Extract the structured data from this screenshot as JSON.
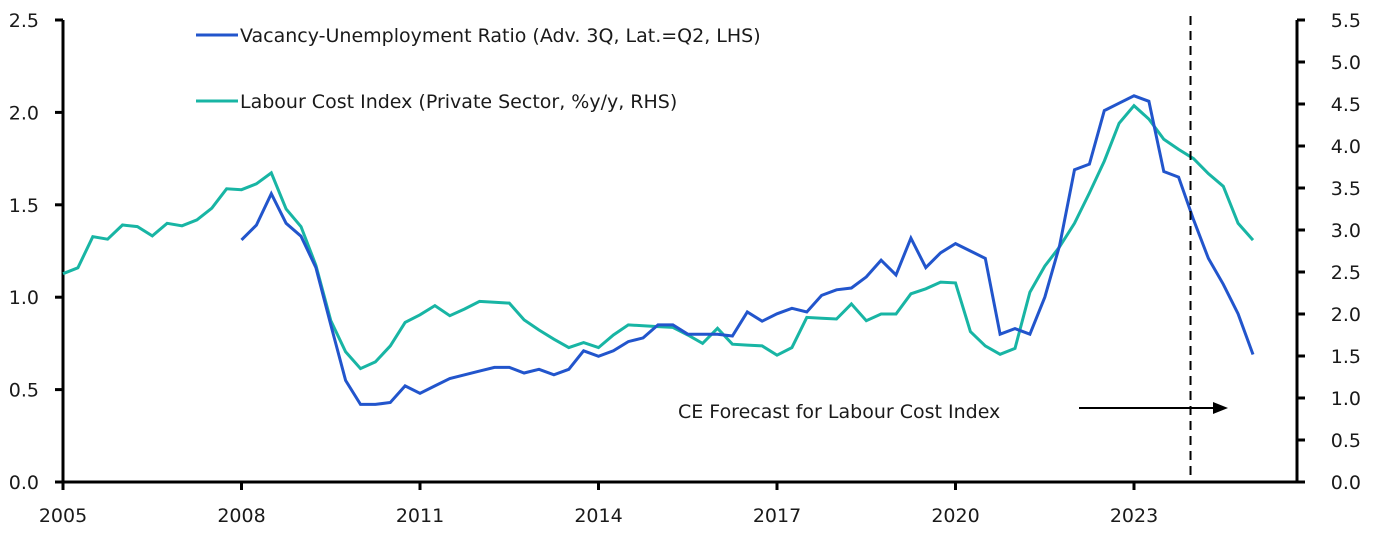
{
  "chart_data": {
    "type": "line",
    "title": "",
    "xlabel": "",
    "ylabel_left": "",
    "ylabel_right": "",
    "xlim": [
      2005,
      2025.9
    ],
    "ylim_left": [
      0,
      2.5
    ],
    "ylim_right": [
      0,
      5.5
    ],
    "x_ticks": [
      2005,
      2008,
      2011,
      2014,
      2017,
      2020,
      2023
    ],
    "x_tick_labels": [
      "2005",
      "2008",
      "2011",
      "2014",
      "2017",
      "2020",
      "2023"
    ],
    "y_left_ticks": [
      0,
      0.5,
      1,
      1.5,
      2,
      2.5
    ],
    "y_left_tick_labels": [
      "0.0",
      "0.5",
      "1.0",
      "1.5",
      "2.0",
      "2.5"
    ],
    "y_right_ticks": [
      0,
      0.5,
      1,
      1.5,
      2,
      2.5,
      3,
      3.5,
      4,
      4.5,
      5,
      5.5
    ],
    "y_right_tick_labels": [
      "0.0",
      "0.5",
      "1.0",
      "1.5",
      "2.0",
      "2.5",
      "3.0",
      "3.5",
      "4.0",
      "4.5",
      "5.0",
      "5.5"
    ],
    "grid": false,
    "legend_position": "top-left",
    "series": [
      {
        "name": "Vacancy-Unemployment Ratio (Adv. 3Q, Lat.=Q2, LHS)",
        "axis": "left",
        "color": "#2255cc",
        "x": [
          2008.0,
          2008.25,
          2008.5,
          2008.75,
          2009.0,
          2009.25,
          2009.5,
          2009.75,
          2010.0,
          2010.25,
          2010.5,
          2010.75,
          2011.0,
          2011.25,
          2011.5,
          2011.75,
          2012.0,
          2012.25,
          2012.5,
          2012.75,
          2013.0,
          2013.25,
          2013.5,
          2013.75,
          2014.0,
          2014.25,
          2014.5,
          2014.75,
          2015.0,
          2015.25,
          2015.5,
          2015.75,
          2016.0,
          2016.25,
          2016.5,
          2016.75,
          2017.0,
          2017.25,
          2017.5,
          2017.75,
          2018.0,
          2018.25,
          2018.5,
          2018.75,
          2019.0,
          2019.25,
          2019.5,
          2019.75,
          2020.0,
          2020.25,
          2020.5,
          2020.75,
          2021.0,
          2021.25,
          2021.5,
          2021.75,
          2022.0,
          2022.25,
          2022.5,
          2022.75,
          2023.0,
          2023.25,
          2023.5,
          2023.75,
          2024.0,
          2024.25,
          2024.5,
          2024.75,
          2025.0
        ],
        "values": [
          1.31,
          1.39,
          1.56,
          1.4,
          1.33,
          1.16,
          0.85,
          0.55,
          0.42,
          0.42,
          0.43,
          0.52,
          0.48,
          0.52,
          0.56,
          0.58,
          0.6,
          0.62,
          0.62,
          0.59,
          0.61,
          0.58,
          0.61,
          0.71,
          0.68,
          0.71,
          0.76,
          0.78,
          0.85,
          0.85,
          0.8,
          0.8,
          0.8,
          0.79,
          0.92,
          0.87,
          0.91,
          0.94,
          0.92,
          1.01,
          1.04,
          1.05,
          1.11,
          1.2,
          1.12,
          1.32,
          1.16,
          1.24,
          1.29,
          1.25,
          1.21,
          0.8,
          0.83,
          0.8,
          1.0,
          1.28,
          1.69,
          1.72,
          2.01,
          2.05,
          2.09,
          2.06,
          1.68,
          1.65,
          1.42,
          1.21,
          1.07,
          0.91,
          0.69
        ]
      },
      {
        "name": "Labour Cost Index (Private Sector, %y/y, RHS)",
        "axis": "right",
        "color": "#18b5a4",
        "x": [
          2005.0,
          2005.25,
          2005.5,
          2005.75,
          2006.0,
          2006.25,
          2006.5,
          2006.75,
          2007.0,
          2007.25,
          2007.5,
          2007.75,
          2008.0,
          2008.25,
          2008.5,
          2008.75,
          2009.0,
          2009.25,
          2009.5,
          2009.75,
          2010.0,
          2010.25,
          2010.5,
          2010.75,
          2011.0,
          2011.25,
          2011.5,
          2011.75,
          2012.0,
          2012.25,
          2012.5,
          2012.75,
          2013.0,
          2013.25,
          2013.5,
          2013.75,
          2014.0,
          2014.25,
          2014.5,
          2014.75,
          2015.0,
          2015.25,
          2015.5,
          2015.75,
          2016.0,
          2016.25,
          2016.5,
          2016.75,
          2017.0,
          2017.25,
          2017.5,
          2017.75,
          2018.0,
          2018.25,
          2018.5,
          2018.75,
          2019.0,
          2019.25,
          2019.5,
          2019.75,
          2020.0,
          2020.25,
          2020.5,
          2020.75,
          2021.0,
          2021.25,
          2021.5,
          2021.75,
          2022.0,
          2022.25,
          2022.5,
          2022.75,
          2023.0,
          2023.25,
          2023.5,
          2023.75,
          2024.0,
          2024.25,
          2024.5,
          2024.75,
          2025.0
        ],
        "values": [
          2.48,
          2.55,
          2.92,
          2.89,
          3.06,
          3.04,
          2.93,
          3.08,
          3.05,
          3.12,
          3.26,
          3.49,
          3.48,
          3.55,
          3.68,
          3.25,
          3.04,
          2.58,
          1.92,
          1.55,
          1.35,
          1.43,
          1.62,
          1.9,
          1.99,
          2.1,
          1.98,
          2.06,
          2.15,
          2.14,
          2.13,
          1.93,
          1.81,
          1.7,
          1.6,
          1.66,
          1.6,
          1.75,
          1.87,
          1.86,
          1.85,
          1.84,
          1.75,
          1.65,
          1.83,
          1.64,
          1.63,
          1.62,
          1.51,
          1.6,
          1.96,
          1.95,
          1.94,
          2.12,
          1.92,
          2.0,
          2.0,
          2.24,
          2.3,
          2.38,
          2.37,
          1.79,
          1.62,
          1.52,
          1.59,
          2.26,
          2.57,
          2.8,
          3.08,
          3.44,
          3.82,
          4.27,
          4.48,
          4.32,
          4.08,
          3.96,
          3.85,
          3.67,
          3.52,
          3.08,
          2.88
        ]
      }
    ],
    "annotations": {
      "forecast_label": "CE Forecast for Labour Cost Index",
      "forecast_divider_x": 2023.95
    },
    "legend": {
      "vu_label": "Vacancy-Unemployment Ratio (Adv. 3Q, Lat.=Q2, LHS)",
      "lci_label": "Labour Cost Index (Private Sector, %y/y, RHS)"
    }
  }
}
